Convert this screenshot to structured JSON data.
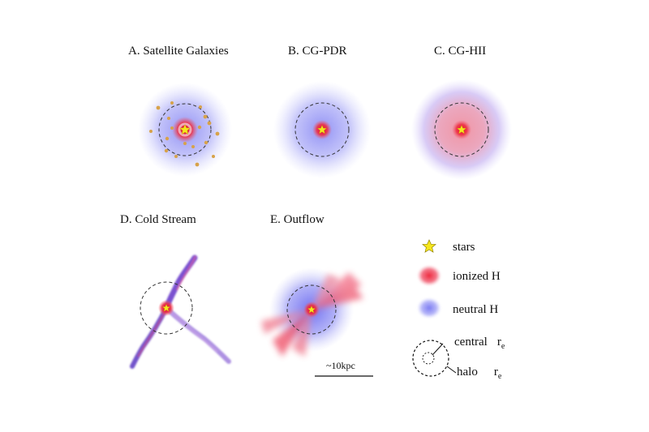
{
  "panels": {
    "a": {
      "title": "A. Satellite Galaxies"
    },
    "b": {
      "title": "B. CG-PDR"
    },
    "c": {
      "title": "C. CG-HII"
    },
    "d": {
      "title": "D. Cold Stream"
    },
    "e": {
      "title": "E. Outflow"
    }
  },
  "scale_bar": {
    "label": "~10kpc"
  },
  "legend": {
    "stars": "stars",
    "ionized": "ionized H",
    "neutral": "neutral H",
    "central": "central",
    "halo": "halo",
    "r_symbol": "r",
    "r_subscript": "e"
  },
  "colors": {
    "neutral_h": "#8c8cf5",
    "ionized_h": "#ee3344",
    "star": "#f5e61e",
    "stream": "#6a3fc8",
    "satellite": "#d4a04a"
  },
  "icons": [
    "star-icon",
    "ionized-h-blob-icon",
    "neutral-h-blob-icon",
    "concentric-circles-icon"
  ]
}
